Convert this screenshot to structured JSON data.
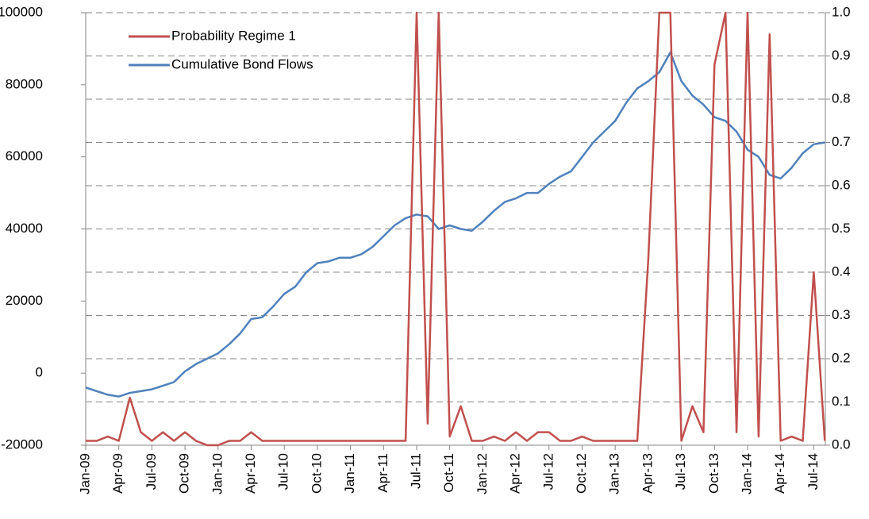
{
  "chart_data": {
    "type": "line",
    "categories": [
      "Jan-09",
      null,
      null,
      "Apr-09",
      null,
      null,
      "Jul-09",
      null,
      null,
      "Oct-09",
      null,
      null,
      "Jan-10",
      null,
      null,
      "Apr-10",
      null,
      null,
      "Jul-10",
      null,
      null,
      "Oct-10",
      null,
      null,
      "Jan-11",
      null,
      null,
      "Apr-11",
      null,
      null,
      "Jul-11",
      null,
      null,
      "Oct-11",
      null,
      null,
      "Jan-12",
      null,
      null,
      "Apr-12",
      null,
      null,
      "Jul-12",
      null,
      null,
      "Oct-12",
      null,
      null,
      "Jan-13",
      null,
      null,
      "Apr-13",
      null,
      null,
      "Jul-13",
      null,
      null,
      "Oct-13",
      null,
      null,
      "Jan-14",
      null,
      null,
      "Apr-14",
      null,
      null,
      "Jul-14",
      null
    ],
    "series": [
      {
        "name": "Cumulative Bond Flows",
        "color": "#4f81bd",
        "values": [
          -4000,
          -5000,
          -6000,
          -6500,
          -5500,
          -5000,
          -4500,
          -3500,
          -2500,
          500,
          2500,
          4000,
          5500,
          8000,
          11000,
          15000,
          15500,
          18500,
          22000,
          24000,
          28000,
          30500,
          31000,
          32000,
          32000,
          33000,
          35000,
          38000,
          41000,
          43000,
          44000,
          43500,
          40000,
          41000,
          40000,
          39500,
          42000,
          45000,
          47500,
          48500,
          50000,
          50000,
          52500,
          54500,
          56000,
          60000,
          64000,
          67000,
          70000,
          75000,
          79000,
          81000,
          83500,
          89000,
          81000,
          77000,
          74500,
          71000,
          70000,
          67000,
          62000,
          60000,
          55000,
          54000,
          57000,
          61000,
          63500,
          64000
        ]
      },
      {
        "name": "Probability Regime 1",
        "color": "#c0504d",
        "axis": "y2",
        "values": [
          0.01,
          0.01,
          0.02,
          0.01,
          0.11,
          0.03,
          0.01,
          0.03,
          0.01,
          0.03,
          0.01,
          0,
          0,
          0.01,
          0.01,
          0.03,
          0.01,
          0.01,
          0.01,
          0.01,
          0.01,
          0.01,
          0.01,
          0.01,
          0.01,
          0.01,
          0.01,
          0.01,
          0.01,
          0.01,
          1.0,
          0.05,
          1.0,
          0.02,
          0.09,
          0.01,
          0.01,
          0.02,
          0.01,
          0.03,
          0.01,
          0.03,
          0.03,
          0.01,
          0.01,
          0.02,
          0.01,
          0.01,
          0.01,
          0.01,
          0.01,
          0.43,
          1.0,
          1.0,
          0.01,
          0.09,
          0.03,
          0.88,
          1.0,
          0.03,
          1.0,
          0.02,
          0.95,
          0.01,
          0.02,
          0.01,
          0.4,
          0.01
        ]
      }
    ],
    "legend_order": [
      "Probability Regime 1",
      "Cumulative Bond Flows"
    ],
    "ylim": [
      -20000,
      100000
    ],
    "yticks": [
      -20000,
      0,
      20000,
      40000,
      60000,
      80000,
      100000
    ],
    "y2lim": [
      0,
      1
    ],
    "y2ticks": [
      {
        "value": 0,
        "label": "0.0"
      },
      0.1,
      0.2,
      0.3,
      0.4,
      0.5,
      0.6,
      0.7,
      0.8,
      0.9,
      {
        "value": 1,
        "label": "1.0"
      }
    ],
    "grid": "y2",
    "legend": "upper left"
  }
}
